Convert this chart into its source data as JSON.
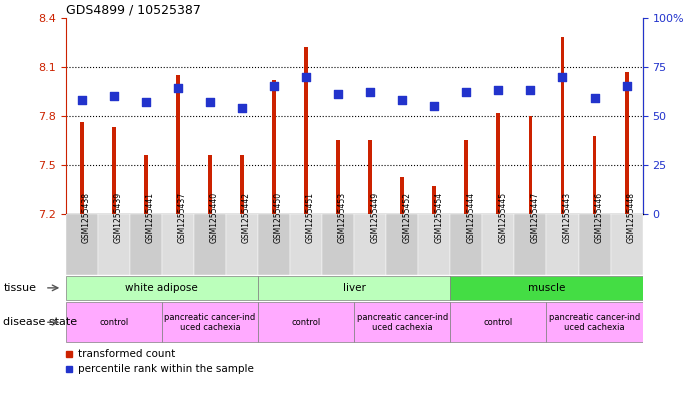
{
  "title": "GDS4899 / 10525387",
  "samples": [
    "GSM1255438",
    "GSM1255439",
    "GSM1255441",
    "GSM1255437",
    "GSM1255440",
    "GSM1255442",
    "GSM1255450",
    "GSM1255451",
    "GSM1255453",
    "GSM1255449",
    "GSM1255452",
    "GSM1255454",
    "GSM1255444",
    "GSM1255445",
    "GSM1255447",
    "GSM1255443",
    "GSM1255446",
    "GSM1255448"
  ],
  "transformed_count": [
    7.76,
    7.73,
    7.56,
    8.05,
    7.56,
    7.56,
    8.02,
    8.22,
    7.65,
    7.65,
    7.43,
    7.37,
    7.65,
    7.82,
    7.8,
    8.28,
    7.68,
    8.07
  ],
  "percentile_rank": [
    58,
    60,
    57,
    64,
    57,
    54,
    65,
    70,
    61,
    62,
    58,
    55,
    62,
    63,
    63,
    70,
    59,
    65
  ],
  "ymin": 7.2,
  "ymax": 8.4,
  "yticks": [
    7.2,
    7.5,
    7.8,
    8.1,
    8.4
  ],
  "ytick_labels": [
    "7.2",
    "7.5",
    "7.8",
    "8.1",
    "8.4"
  ],
  "right_yticks": [
    0,
    25,
    50,
    75,
    100
  ],
  "right_ytick_labels": [
    "0",
    "25",
    "50",
    "75",
    "100%"
  ],
  "bar_color": "#cc2200",
  "dot_color": "#2233cc",
  "bar_width": 0.12,
  "dot_size": 40,
  "left_axis_color": "#cc2200",
  "right_axis_color": "#2233cc",
  "tissue_groups": [
    {
      "label": "white adipose",
      "start": 0,
      "end": 5,
      "color": "#bbffbb"
    },
    {
      "label": "liver",
      "start": 6,
      "end": 11,
      "color": "#bbffbb"
    },
    {
      "label": "muscle",
      "start": 12,
      "end": 17,
      "color": "#44dd44"
    }
  ],
  "disease_groups": [
    {
      "label": "control",
      "start": 0,
      "end": 2,
      "color": "#ffaaff"
    },
    {
      "label": "pancreatic cancer-ind\nuced cachexia",
      "start": 3,
      "end": 5,
      "color": "#ffaaff"
    },
    {
      "label": "control",
      "start": 6,
      "end": 8,
      "color": "#ffaaff"
    },
    {
      "label": "pancreatic cancer-ind\nuced cachexia",
      "start": 9,
      "end": 11,
      "color": "#ffaaff"
    },
    {
      "label": "control",
      "start": 12,
      "end": 14,
      "color": "#ffaaff"
    },
    {
      "label": "pancreatic cancer-ind\nuced cachexia",
      "start": 15,
      "end": 17,
      "color": "#ffaaff"
    }
  ],
  "label_bg_color": "#cccccc",
  "label_bg_color2": "#dddddd"
}
